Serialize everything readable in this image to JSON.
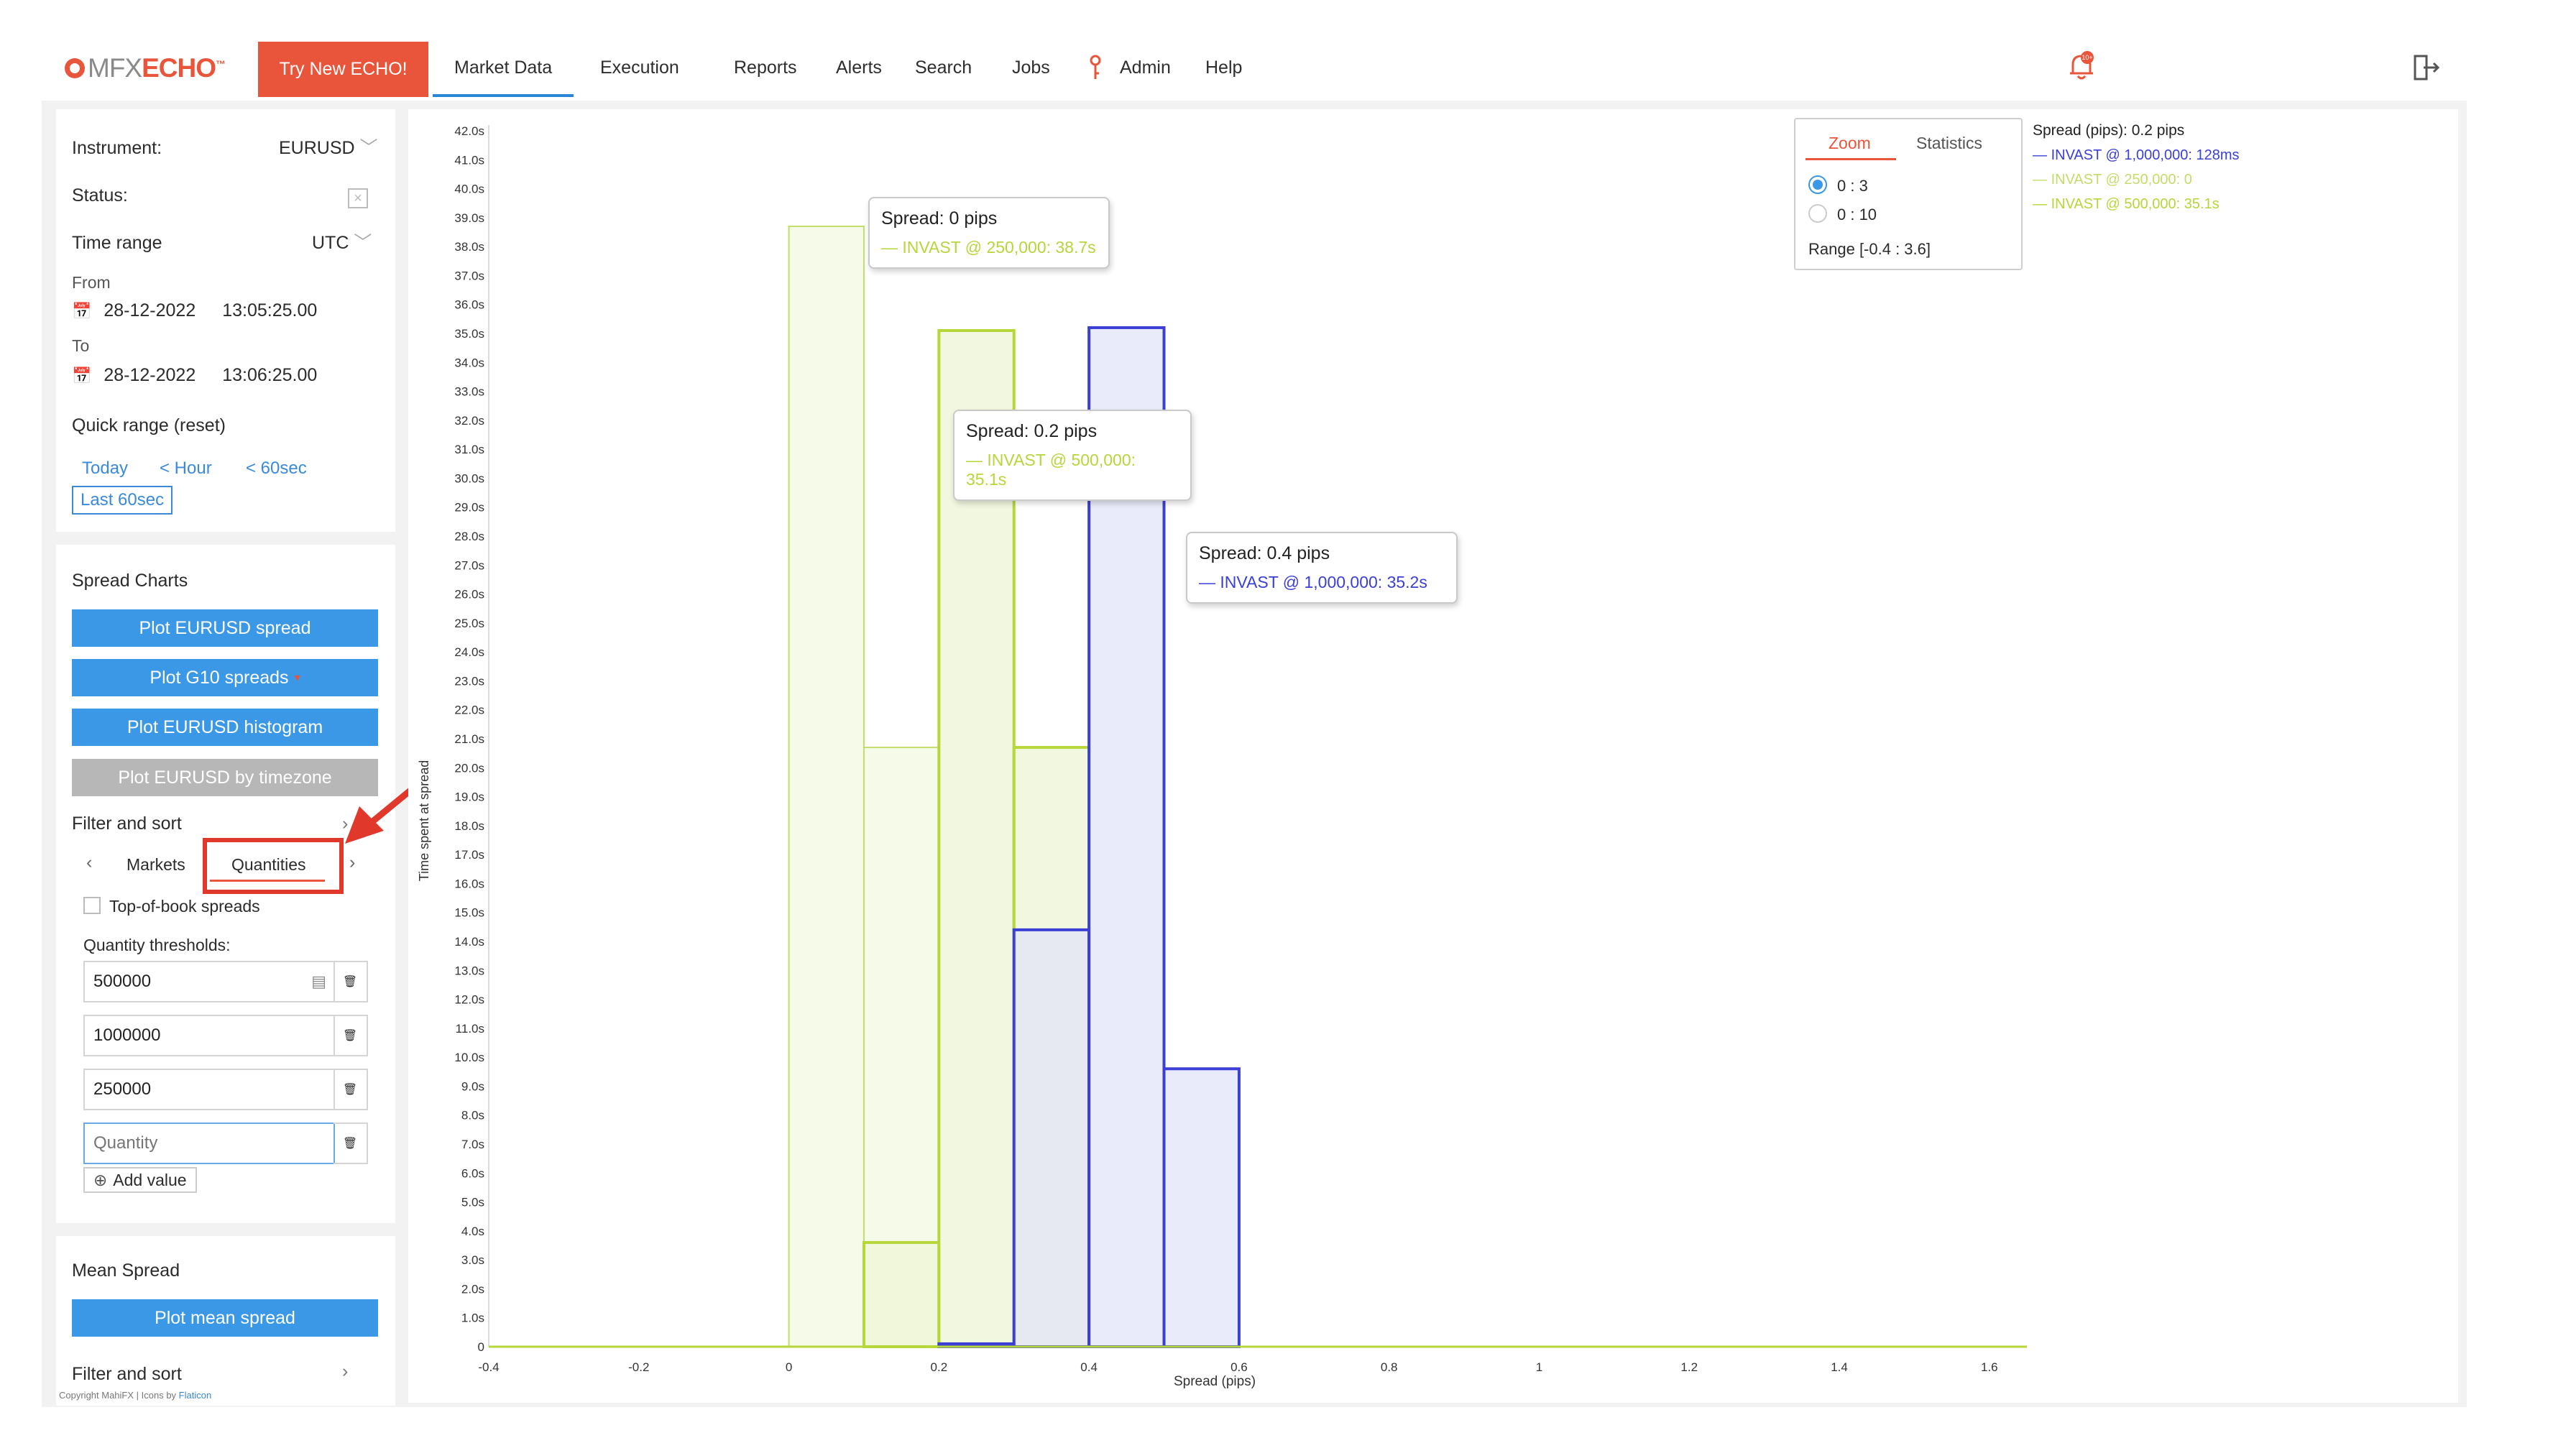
{
  "brand": {
    "mfx": "MFX",
    "echo": "ECHO",
    "tm": "™"
  },
  "nav": {
    "try_label": "Try New ECHO!",
    "items": [
      "Market Data",
      "Execution",
      "Reports",
      "Alerts",
      "Search",
      "Jobs",
      "Admin",
      "Help"
    ],
    "active": "Market Data",
    "bell_badge": "10+"
  },
  "colors": {
    "accent": "#e8553a",
    "primary": "#3a98e6",
    "series_green": "#b6d63a",
    "series_blue": "#3b3fd6"
  },
  "sidebar": {
    "instrument_label": "Instrument:",
    "instrument_value": "EURUSD",
    "status_label": "Status:",
    "time_range_label": "Time range",
    "time_zone": "UTC",
    "from_label": "From",
    "from_date": "28-12-2022",
    "from_time": "13:05:25.00",
    "to_label": "To",
    "to_date": "28-12-2022",
    "to_time": "13:06:25.00",
    "quick_range_label": "Quick range (reset)",
    "quick_today": "Today",
    "quick_hour": "< Hour",
    "quick_60sec": "< 60sec",
    "quick_last60": "Last 60sec",
    "spread_charts_title": "Spread Charts",
    "btn_plot_spread": "Plot EURUSD spread",
    "btn_plot_g10": "Plot G10 spreads",
    "btn_plot_histogram": "Plot EURUSD histogram",
    "btn_plot_timezone": "Plot EURUSD by timezone",
    "filter_sort_label": "Filter and sort",
    "tab_markets": "Markets",
    "tab_quantities": "Quantities",
    "top_of_book_label": "Top-of-book spreads",
    "quantity_thresholds_label": "Quantity thresholds:",
    "quantities": [
      "500000",
      "1000000",
      "250000"
    ],
    "quantity_placeholder": "Quantity",
    "add_value_label": "Add value",
    "mean_spread_title": "Mean Spread",
    "btn_plot_mean": "Plot mean spread",
    "filter_sort_label_2": "Filter and sort",
    "copyright": "Copyright MahiFX | Icons by ",
    "copyright_link": "Flaticon"
  },
  "zoom_panel": {
    "tab_zoom": "Zoom",
    "tab_statistics": "Statistics",
    "option_1": "0 : 3",
    "option_2": "0 : 10",
    "range": "Range [-0.4 : 3.6]"
  },
  "legend": {
    "title": "Spread (pips): 0.2 pips",
    "entries": [
      {
        "text": "INVAST @ 1,000,000: 128ms",
        "color": "#3b3fd6"
      },
      {
        "text": "INVAST @ 250,000: 0",
        "color": "#c3dd6a"
      },
      {
        "text": "INVAST @ 500,000: 35.1s",
        "color": "#b6d63a"
      }
    ]
  },
  "tooltips": [
    {
      "title": "Spread: 0 pips",
      "line": "INVAST @ 250,000: 38.7s",
      "color": "#b6d63a"
    },
    {
      "title": "Spread: 0.2 pips",
      "line": "INVAST @ 500,000: 35.1s",
      "color": "#b6d63a"
    },
    {
      "title": "Spread: 0.4 pips",
      "line": "INVAST @ 1,000,000: 35.2s",
      "color": "#3b3fd6"
    }
  ],
  "chart_data": {
    "type": "area",
    "xlabel": "Spread (pips)",
    "ylabel": "Time spent at spread",
    "xlim": [
      -0.4,
      1.65
    ],
    "ylim": [
      0,
      42
    ],
    "x_ticks": [
      "-0.4",
      "-0.2",
      "0",
      "0.2",
      "0.4",
      "0.6",
      "0.8",
      "1",
      "1.2",
      "1.4",
      "1.6"
    ],
    "y_ticks": [
      "0",
      "1.0s",
      "2.0s",
      "3.0s",
      "4.0s",
      "5.0s",
      "6.0s",
      "7.0s",
      "8.0s",
      "9.0s",
      "10.0s",
      "11.0s",
      "12.0s",
      "13.0s",
      "14.0s",
      "15.0s",
      "16.0s",
      "17.0s",
      "18.0s",
      "19.0s",
      "20.0s",
      "21.0s",
      "22.0s",
      "23.0s",
      "24.0s",
      "25.0s",
      "26.0s",
      "27.0s",
      "28.0s",
      "29.0s",
      "30.0s",
      "31.0s",
      "32.0s",
      "33.0s",
      "34.0s",
      "35.0s",
      "36.0s",
      "37.0s",
      "38.0s",
      "39.0s",
      "40.0s",
      "41.0s",
      "42.0s"
    ],
    "series": [
      {
        "name": "INVAST @ 250,000",
        "color": "#c3dd6a",
        "fill": "#f2f8e2",
        "bins": [
          [
            0,
            0.1,
            38.7
          ],
          [
            0.1,
            0.2,
            20.7
          ]
        ]
      },
      {
        "name": "INVAST @ 500,000",
        "color": "#b6d63a",
        "fill": "#eef5d6",
        "bins": [
          [
            0.1,
            0.2,
            3.6
          ],
          [
            0.2,
            0.3,
            35.1
          ],
          [
            0.3,
            0.4,
            20.7
          ]
        ]
      },
      {
        "name": "INVAST @ 1,000,000",
        "color": "#3b3fd6",
        "fill": "#e3e4f8",
        "bins": [
          [
            0.2,
            0.3,
            0.1
          ],
          [
            0.3,
            0.4,
            14.4
          ],
          [
            0.4,
            0.5,
            35.2
          ],
          [
            0.5,
            0.6,
            9.6
          ]
        ]
      }
    ]
  }
}
